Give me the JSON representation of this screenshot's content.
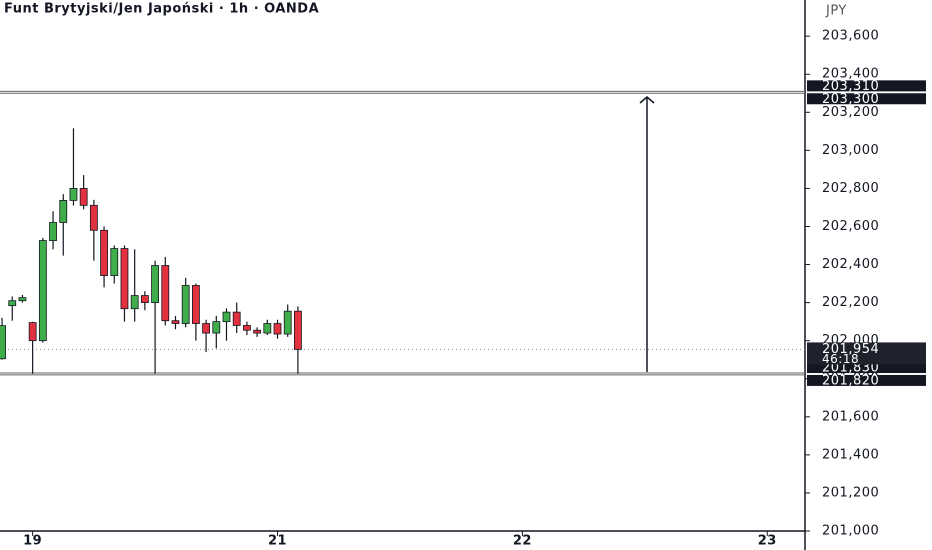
{
  "chart_data": {
    "type": "candlestick",
    "title": "Funt Brytyjski/Jen Japoński · 1h · OANDA",
    "currency": "JPY",
    "x": [
      -3,
      -2,
      -1,
      0,
      1,
      2,
      3,
      4,
      5,
      6,
      7,
      8,
      9,
      10,
      11,
      12,
      13,
      14,
      15,
      16,
      17,
      18,
      19,
      20,
      21,
      22,
      23,
      24,
      25,
      26
    ],
    "open": [
      201905,
      202184,
      202210,
      202095,
      202000,
      202526,
      202621,
      202737,
      202800,
      202711,
      202580,
      202342,
      202484,
      202168,
      202237,
      202200,
      202395,
      202105,
      202090,
      202290,
      202090,
      202040,
      202100,
      202150,
      202080,
      202055,
      202040,
      202090,
      202035,
      202155
    ],
    "high": [
      202120,
      202232,
      202240,
      202100,
      202540,
      202680,
      202770,
      203116,
      202870,
      202740,
      202600,
      202500,
      202500,
      202480,
      202260,
      202420,
      202440,
      202130,
      202330,
      202300,
      202110,
      202130,
      202170,
      202200,
      202100,
      202070,
      202110,
      202110,
      202190,
      202180
    ],
    "low": [
      201900,
      202105,
      202200,
      201826,
      201990,
      202480,
      202447,
      202710,
      202690,
      202420,
      202280,
      202300,
      202100,
      202100,
      202160,
      201826,
      202080,
      202060,
      202070,
      202000,
      201940,
      201960,
      202000,
      202040,
      202030,
      202020,
      202030,
      202010,
      202020,
      201826
    ],
    "close": [
      202079,
      202210,
      202226,
      202000,
      202526,
      202621,
      202737,
      202800,
      202711,
      202580,
      202342,
      202484,
      202168,
      202237,
      202200,
      202395,
      202105,
      202090,
      202290,
      202090,
      202040,
      202100,
      202150,
      202080,
      202055,
      202040,
      202090,
      202035,
      202155,
      201954
    ],
    "up_color": "#3fae4a",
    "down_color": "#e2323f",
    "xlim": [
      -3.2,
      75.7
    ],
    "xticks": [
      {
        "value": 0,
        "label": "19"
      },
      {
        "value": 24,
        "label": "21"
      },
      {
        "value": 48,
        "label": "22"
      },
      {
        "value": 72,
        "label": "23"
      }
    ],
    "ylim": [
      201000,
      203790
    ],
    "yticks": [
      {
        "value": 201000,
        "label": "201,000"
      },
      {
        "value": 201200,
        "label": "201,200"
      },
      {
        "value": 201400,
        "label": "201,400"
      },
      {
        "value": 201600,
        "label": "201,600"
      },
      {
        "value": 201800,
        "label": "201,800"
      },
      {
        "value": 202000,
        "label": "202,000"
      },
      {
        "value": 202200,
        "label": "202,200"
      },
      {
        "value": 202400,
        "label": "202,400"
      },
      {
        "value": 202600,
        "label": "202,600"
      },
      {
        "value": 202800,
        "label": "202,800"
      },
      {
        "value": 203000,
        "label": "203,000"
      },
      {
        "value": 203200,
        "label": "203,200"
      },
      {
        "value": 203400,
        "label": "203,400"
      },
      {
        "value": 203600,
        "label": "203,600"
      }
    ],
    "levels": [
      {
        "value": 203310,
        "label": "203,310"
      },
      {
        "value": 203300,
        "label": "203,300"
      },
      {
        "value": 201830,
        "label": "201,830"
      },
      {
        "value": 201820,
        "label": "201,820"
      }
    ],
    "last_price": {
      "value": 201954,
      "label": "201,954"
    },
    "countdown": "46:18"
  }
}
